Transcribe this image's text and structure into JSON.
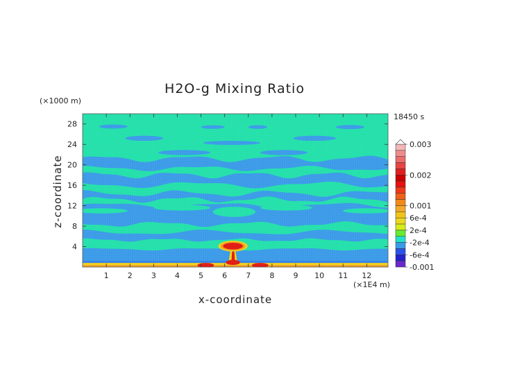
{
  "chart_data": {
    "type": "heatmap",
    "title": "H2O-g Mixing Ratio",
    "xlabel": "x-coordinate",
    "ylabel": "z-coordinate",
    "x_unit": "(×1E4 m)",
    "y_unit": "(×1000 m)",
    "time_label": "18450 s",
    "xlim": [
      0,
      12.9
    ],
    "ylim": [
      0,
      30
    ],
    "xticks": [
      "1",
      "2",
      "3",
      "4",
      "5",
      "6",
      "7",
      "8",
      "9",
      "10",
      "11",
      "12"
    ],
    "yticks": [
      "4",
      "8",
      "12",
      "16",
      "20",
      "24",
      "28"
    ],
    "colorbar": {
      "labels": [
        "0.003",
        "0.002",
        "0.001",
        "6e-4",
        "2e-4",
        "-2e-4",
        "-6e-4",
        "-0.001"
      ],
      "levels": [
        0.003,
        0.0028,
        0.0026,
        0.0024,
        0.0022,
        0.002,
        0.0018,
        0.0016,
        0.0014,
        0.0012,
        0.001,
        0.0008,
        0.0006,
        0.0004,
        0.0002,
        0,
        -0.0002,
        -0.0004,
        -0.0006,
        -0.0008,
        -0.001
      ],
      "colors": [
        "#f4b6b6",
        "#f08c8c",
        "#ec6c6c",
        "#e84444",
        "#e02020",
        "#cc0000",
        "#e81010",
        "#ee3a1a",
        "#f06018",
        "#f28a1a",
        "#f4a82a",
        "#f2c418",
        "#ecd820",
        "#d4ec18",
        "#66ec33",
        "#22e0cc",
        "#3a9ae8",
        "#2a52e8",
        "#2222cc",
        "#6a28cc",
        "#a020f0"
      ]
    },
    "background_value": -0.0001,
    "features": [
      {
        "name": "moist near-surface layer",
        "x_range": [
          0,
          12.9
        ],
        "z_range": [
          0,
          0.8
        ],
        "value": 0.001
      },
      {
        "name": "plume anvil",
        "x_center": 6.35,
        "z_center": 4.1,
        "value": 0.0022
      },
      {
        "name": "plume stem",
        "x_center": 6.35,
        "z_range": [
          0.5,
          4
        ],
        "value": 0.0012
      },
      {
        "name": "band 4 km",
        "x_range": [
          0,
          12.9
        ],
        "z_range": [
          3.2,
          5.2
        ],
        "value": 0.0001
      },
      {
        "name": "band 10-11 km",
        "x_range": [
          0,
          12.9
        ],
        "z_range": [
          9.5,
          11.5
        ],
        "value": 0.0001
      },
      {
        "name": "band 15 km",
        "x_range": [
          0,
          12.9
        ],
        "z_range": [
          14,
          16
        ],
        "value": 0.0001
      },
      {
        "name": "upper layer",
        "x_range": [
          0,
          12.9
        ],
        "z_range": [
          21,
          30
        ],
        "value": 0.0001
      }
    ]
  }
}
